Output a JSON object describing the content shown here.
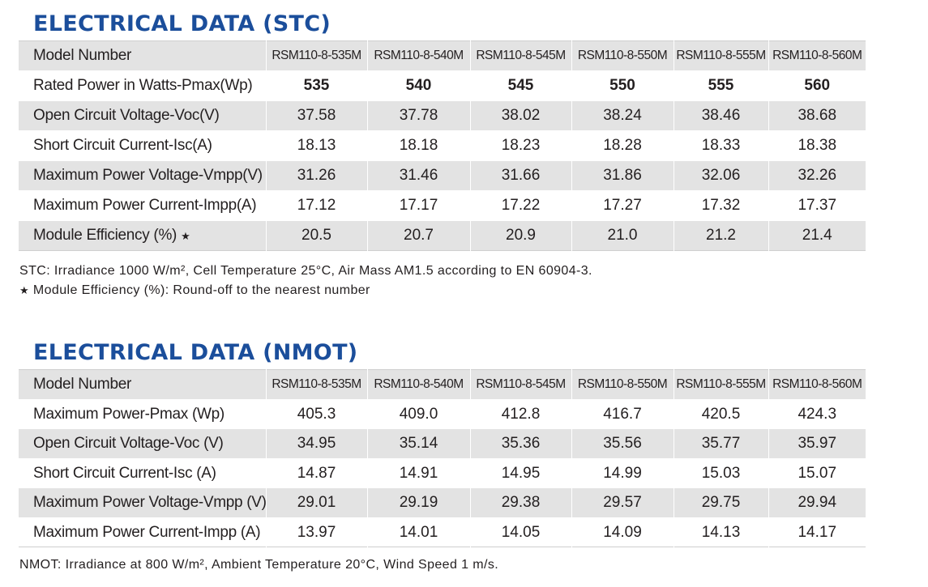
{
  "stc": {
    "title": "ELECTRICAL DATA (STC)",
    "header": {
      "label": "Model Number",
      "models": [
        "RSM110-8-535M",
        "RSM110-8-540M",
        "RSM110-8-545M",
        "RSM110-8-550M",
        "RSM110-8-555M",
        "RSM110-8-560M"
      ]
    },
    "rows": [
      {
        "label": "Rated Power in Watts-Pmax(Wp)",
        "values": [
          "535",
          "540",
          "545",
          "550",
          "555",
          "560"
        ]
      },
      {
        "label": "Open Circuit Voltage-Voc(V)",
        "values": [
          "37.58",
          "37.78",
          "38.02",
          "38.24",
          "38.46",
          "38.68"
        ]
      },
      {
        "label": "Short Circuit Current-Isc(A)",
        "values": [
          "18.13",
          "18.18",
          "18.23",
          "18.28",
          "18.33",
          "18.38"
        ]
      },
      {
        "label": "Maximum Power Voltage-Vmpp(V)",
        "values": [
          "31.26",
          "31.46",
          "31.66",
          "31.86",
          "32.06",
          "32.26"
        ]
      },
      {
        "label": "Maximum Power Current-Impp(A)",
        "values": [
          "17.12",
          "17.17",
          "17.22",
          "17.27",
          "17.32",
          "17.37"
        ]
      },
      {
        "label": "Module Efficiency (%) ",
        "star": "★",
        "values": [
          "20.5",
          "20.7",
          "20.9",
          "21.0",
          "21.2",
          "21.4"
        ]
      }
    ],
    "note1": "STC: Irradiance 1000 W/m², Cell Temperature 25°C, Air Mass AM1.5 according to EN 60904-3.",
    "note2_star": "★",
    "note2": " Module Efficiency (%): Round-off to the nearest number"
  },
  "nmot": {
    "title": "ELECTRICAL DATA (NMOT)",
    "header": {
      "label": "Model Number",
      "models": [
        "RSM110-8-535M",
        "RSM110-8-540M",
        "RSM110-8-545M",
        "RSM110-8-550M",
        "RSM110-8-555M",
        "RSM110-8-560M"
      ]
    },
    "rows": [
      {
        "label": "Maximum Power-Pmax (Wp)",
        "values": [
          "405.3",
          "409.0",
          "412.8",
          "416.7",
          "420.5",
          "424.3"
        ]
      },
      {
        "label": "Open Circuit Voltage-Voc (V)",
        "values": [
          "34.95",
          "35.14",
          "35.36",
          "35.56",
          "35.77",
          "35.97"
        ]
      },
      {
        "label": "Short Circuit Current-Isc (A)",
        "values": [
          "14.87",
          "14.91",
          "14.95",
          "14.99",
          "15.03",
          "15.07"
        ]
      },
      {
        "label": "Maximum Power Voltage-Vmpp (V)",
        "values": [
          "29.01",
          "29.19",
          "29.38",
          "29.57",
          "29.75",
          "29.94"
        ]
      },
      {
        "label": "Maximum Power Current-Impp (A)",
        "values": [
          "13.97",
          "14.01",
          "14.05",
          "14.09",
          "14.13",
          "14.17"
        ]
      }
    ],
    "note1": "NMOT: Irradiance at 800 W/m², Ambient Temperature 20°C, Wind Speed 1 m/s."
  },
  "colors": {
    "title": "#1b4e9b",
    "row_shade": "#e3e3e3",
    "text": "#231f20"
  }
}
